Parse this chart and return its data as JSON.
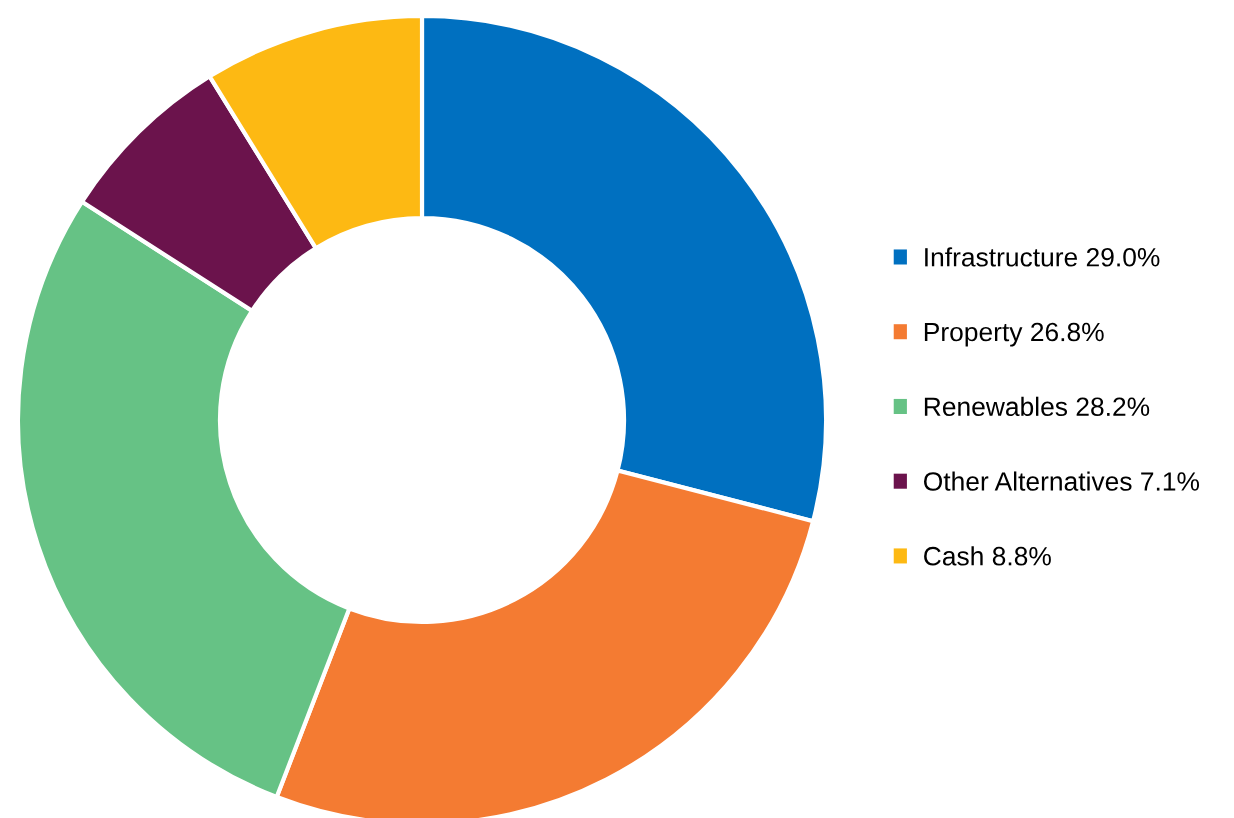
{
  "chart_data": {
    "type": "donut",
    "categories": [
      "Infrastructure 29.0%",
      "Property 26.8%",
      "Renewables 28.2%",
      "Other Alternatives 7.1%",
      "Cash 8.8%"
    ],
    "values": [
      29.0,
      26.8,
      28.2,
      7.1,
      8.8
    ],
    "colors": [
      "#0070c0",
      "#f47b32",
      "#66c285",
      "#6b134c",
      "#fdb913"
    ],
    "legend": "right"
  }
}
